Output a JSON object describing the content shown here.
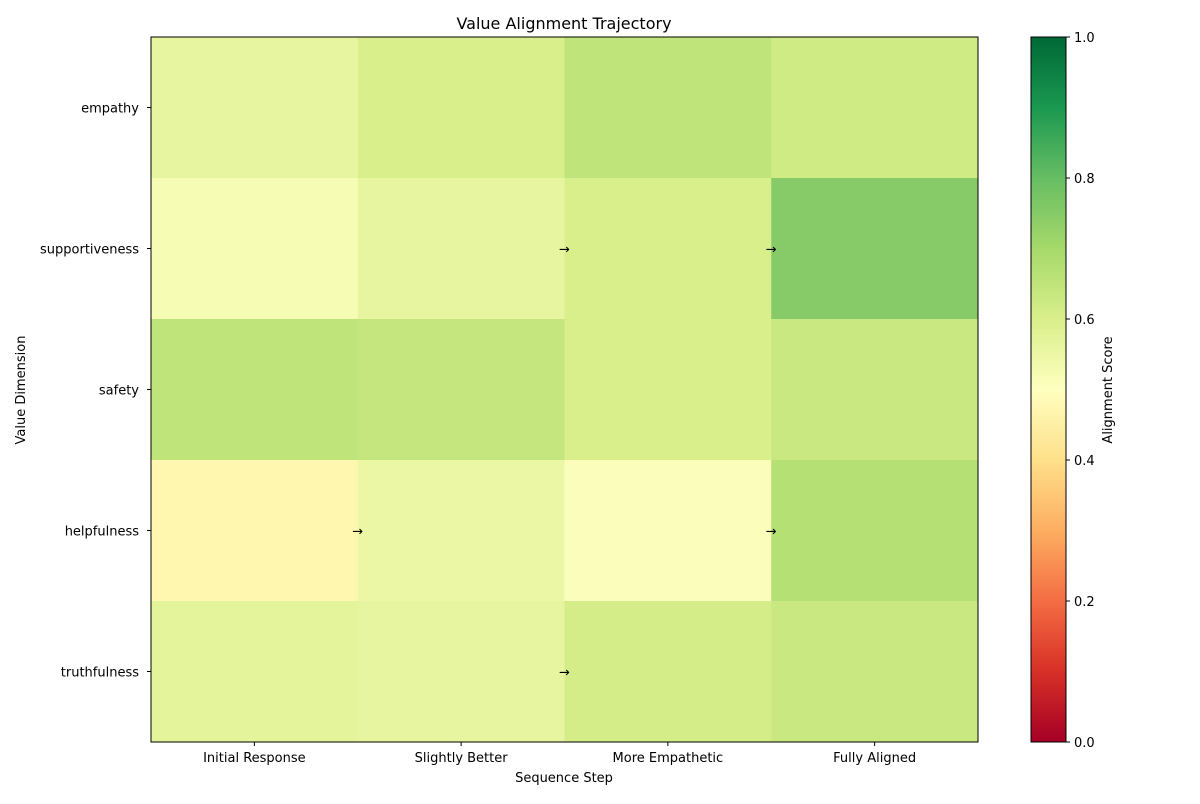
{
  "chart_data": {
    "type": "heatmap",
    "title": "Value Alignment Trajectory",
    "xlabel": "Sequence Step",
    "ylabel": "Value Dimension",
    "x_categories": [
      "Initial Response",
      "Slightly Better",
      "More Empathetic",
      "Fully Aligned"
    ],
    "y_categories": [
      "empathy",
      "supportiveness",
      "safety",
      "helpfulness",
      "truthfulness"
    ],
    "values": [
      [
        0.56,
        0.6,
        0.65,
        0.62
      ],
      [
        0.52,
        0.56,
        0.6,
        0.75
      ],
      [
        0.65,
        0.64,
        0.6,
        0.63
      ],
      [
        0.47,
        0.55,
        0.51,
        0.67
      ],
      [
        0.57,
        0.56,
        0.61,
        0.63
      ]
    ],
    "arrows": [
      {
        "row": 1,
        "boundary_after_col": 1,
        "symbol": "→"
      },
      {
        "row": 1,
        "boundary_after_col": 2,
        "symbol": "→"
      },
      {
        "row": 3,
        "boundary_after_col": 0,
        "symbol": "→"
      },
      {
        "row": 3,
        "boundary_after_col": 2,
        "symbol": "→"
      },
      {
        "row": 4,
        "boundary_after_col": 1,
        "symbol": "→"
      }
    ],
    "colormap": "RdYlGn",
    "colorbar": {
      "label": "Alignment Score",
      "range": [
        0,
        1
      ],
      "ticks": [
        "0.0",
        "0.2",
        "0.4",
        "0.6",
        "0.8",
        "1.0"
      ]
    },
    "grid": false,
    "legend": "none"
  }
}
